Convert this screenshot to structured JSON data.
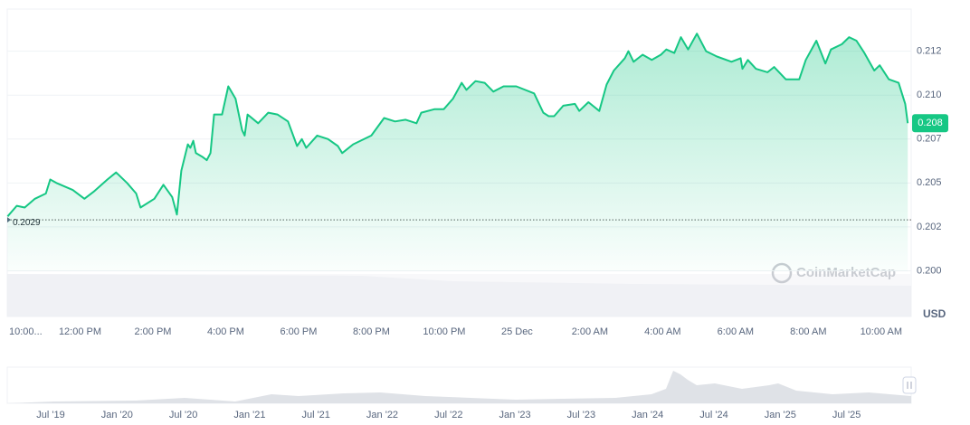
{
  "chart_data": {
    "type": "line",
    "color": "#16c784",
    "xlim": [
      0,
      24.75
    ],
    "ylim": [
      0.1974,
      0.2149
    ],
    "x": [
      0.01,
      0.26,
      0.48,
      0.76,
      1.06,
      1.18,
      1.35,
      1.8,
      2.12,
      2.37,
      2.75,
      2.99,
      3.29,
      3.54,
      3.66,
      4.04,
      4.29,
      4.53,
      4.66,
      4.78,
      4.96,
      5.03,
      5.11,
      5.18,
      5.35,
      5.48,
      5.58,
      5.68,
      5.9,
      6.07,
      6.27,
      6.45,
      6.52,
      6.6,
      6.89,
      7.17,
      7.42,
      7.71,
      7.96,
      8.09,
      8.21,
      8.51,
      8.81,
      9.08,
      9.2,
      9.5,
      10.0,
      10.35,
      10.65,
      10.94,
      11.24,
      11.37,
      11.74,
      11.99,
      12.24,
      12.48,
      12.61,
      12.86,
      13.11,
      13.35,
      13.63,
      13.98,
      14.47,
      14.72,
      14.87,
      15.02,
      15.27,
      15.59,
      15.71,
      15.96,
      16.26,
      16.46,
      16.66,
      16.96,
      17.06,
      17.2,
      17.45,
      17.7,
      17.95,
      18.1,
      18.32,
      18.5,
      18.7,
      18.94,
      19.19,
      19.49,
      19.89,
      20.14,
      20.19,
      20.34,
      20.56,
      20.88,
      21.06,
      21.38,
      21.75,
      21.93,
      22.22,
      22.47,
      22.62,
      22.92,
      23.12,
      23.32,
      23.54,
      23.81,
      23.96,
      24.21,
      24.48,
      24.66,
      24.73
    ],
    "values": [
      0.2031,
      0.2037,
      0.2036,
      0.2041,
      0.2044,
      0.2052,
      0.205,
      0.2046,
      0.2041,
      0.2045,
      0.2052,
      0.2056,
      0.205,
      0.2044,
      0.2036,
      0.2041,
      0.2049,
      0.2042,
      0.2032,
      0.2057,
      0.2072,
      0.207,
      0.2074,
      0.2067,
      0.2065,
      0.2063,
      0.2067,
      0.2089,
      0.2089,
      0.2105,
      0.2098,
      0.208,
      0.2077,
      0.2089,
      0.2084,
      0.209,
      0.2089,
      0.2085,
      0.2071,
      0.2075,
      0.207,
      0.2077,
      0.2075,
      0.2071,
      0.2067,
      0.2072,
      0.2077,
      0.2087,
      0.2085,
      0.2086,
      0.2084,
      0.209,
      0.2092,
      0.2092,
      0.2098,
      0.2107,
      0.2103,
      0.2108,
      0.2107,
      0.2102,
      0.2105,
      0.2105,
      0.2101,
      0.209,
      0.2088,
      0.2088,
      0.2094,
      0.2095,
      0.2091,
      0.2096,
      0.2091,
      0.2106,
      0.2114,
      0.2121,
      0.2125,
      0.2119,
      0.2123,
      0.212,
      0.2123,
      0.2126,
      0.2124,
      0.2133,
      0.2126,
      0.2135,
      0.2125,
      0.2122,
      0.2119,
      0.2121,
      0.2115,
      0.212,
      0.2115,
      0.2113,
      0.2116,
      0.2109,
      0.2109,
      0.212,
      0.2131,
      0.2118,
      0.2126,
      0.2129,
      0.2133,
      0.2131,
      0.2124,
      0.2114,
      0.2117,
      0.2109,
      0.2107,
      0.2095,
      0.2084
    ],
    "current_label": "0.208",
    "reference": 0.2029,
    "currency": "USD",
    "watermark": "CoinMarketCap",
    "xticks": [
      {
        "value": 0,
        "label": "10:00..."
      },
      {
        "value": 2,
        "label": "12:00 PM"
      },
      {
        "value": 4,
        "label": "2:00 PM"
      },
      {
        "value": 6,
        "label": "4:00 PM"
      },
      {
        "value": 8,
        "label": "6:00 PM"
      },
      {
        "value": 10,
        "label": "8:00 PM"
      },
      {
        "value": 12,
        "label": "10:00 PM"
      },
      {
        "value": 14,
        "label": "25 Dec"
      },
      {
        "value": 16,
        "label": "2:00 AM"
      },
      {
        "value": 18,
        "label": "4:00 AM"
      },
      {
        "value": 20,
        "label": "6:00 AM"
      },
      {
        "value": 22,
        "label": "8:00 AM"
      },
      {
        "value": 24,
        "label": "10:00 AM"
      }
    ],
    "yticks": [
      {
        "value": 0.2,
        "label": "0.200"
      },
      {
        "value": 0.2025,
        "label": "0.202"
      },
      0.205,
      {
        "value": 0.2075,
        "label": "0.207"
      },
      {
        "value": 0.21,
        "label": "0.210"
      },
      {
        "value": 0.2125,
        "label": "0.212"
      }
    ],
    "grid": true,
    "navigator_labels": [
      "Jul '19",
      "Jan '20",
      "Jul '20",
      "Jan '21",
      "Jul '21",
      "Jan '22",
      "Jul '22",
      "Jan '23",
      "Jul '23",
      "Jan '24",
      "Jul '24",
      "Jan '25",
      "Jul '25"
    ]
  }
}
